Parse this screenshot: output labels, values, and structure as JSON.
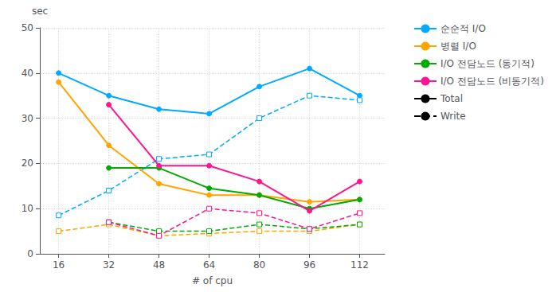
{
  "chart_data": {
    "type": "line",
    "x": [
      16,
      32,
      48,
      64,
      80,
      96,
      112
    ],
    "xlabel": "# of cpu",
    "ylabel": "sec",
    "xlim": [
      10,
      120
    ],
    "xticks": [
      16,
      32,
      48,
      64,
      80,
      96,
      112
    ],
    "ylim": [
      0,
      50
    ],
    "yticks": [
      0,
      10,
      20,
      30,
      40,
      50
    ],
    "grid": true,
    "legend": "right",
    "series": [
      {
        "name": "순순적 I/O",
        "color": "#00AAFF",
        "line_style": "solid",
        "marker": "circle",
        "values": [
          40,
          35,
          32,
          31,
          37,
          41,
          35
        ]
      },
      {
        "name": "순순적 I/O",
        "color": "#00AAFF",
        "line_style": "dashed",
        "marker": "square",
        "values": [
          8.5,
          14,
          21,
          22,
          30,
          35,
          34
        ]
      },
      {
        "name": "병렬 I/O",
        "color": "#FFA500",
        "line_style": "solid",
        "marker": "circle",
        "values": [
          38,
          24,
          15.5,
          13,
          13,
          11.5,
          12
        ]
      },
      {
        "name": "병렬 I/O",
        "color": "#FFA500",
        "line_style": "dashed",
        "marker": "square",
        "values": [
          5,
          6.5,
          4,
          4.5,
          5,
          5,
          6.5
        ]
      },
      {
        "name": "I/O 전담노드 (동기적)",
        "color": "#00AA00",
        "line_style": "solid",
        "marker": "circle",
        "values": [
          null,
          19,
          19,
          14.5,
          13,
          10,
          12
        ]
      },
      {
        "name": "I/O 전담노드 (동기적)",
        "color": "#00AA00",
        "line_style": "dashed",
        "marker": "square",
        "values": [
          null,
          7,
          5,
          5,
          6.5,
          5.5,
          6.5
        ]
      },
      {
        "name": "I/O 전담노드 (비동기적)",
        "color": "#FF1493",
        "line_style": "solid",
        "marker": "circle",
        "values": [
          null,
          33,
          19.5,
          19.5,
          16,
          9.5,
          16
        ]
      },
      {
        "name": "I/O 전담노드 (비동기적)",
        "color": "#FF1493",
        "line_style": "dashed",
        "marker": "square",
        "values": [
          null,
          7,
          4,
          10,
          9,
          5.5,
          9
        ]
      }
    ],
    "style_legend": [
      {
        "name": "Total",
        "color": "#000000",
        "line_style": "solid"
      },
      {
        "name": "Write",
        "color": "#000000",
        "line_style": "dashed"
      }
    ]
  }
}
